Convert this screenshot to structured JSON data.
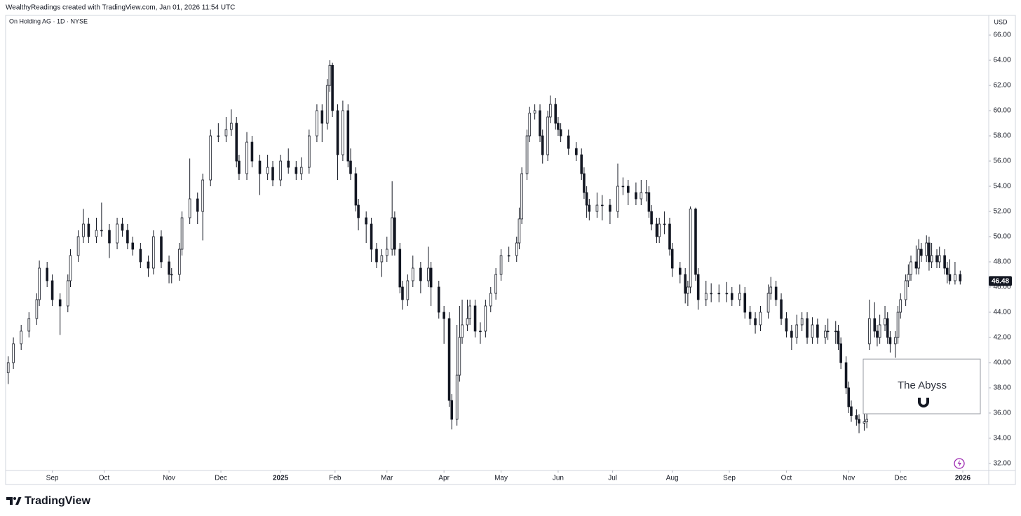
{
  "header": "WealthyReadings created with TradingView.com, Jan 01, 2026 11:54 UTC",
  "footer": "TradingView",
  "chart_data": {
    "type": "candlestick",
    "title": "On Holding AG · 1D · NYSE",
    "currency": "USD",
    "annotation": "The Abyss",
    "up_color": "#ffffff",
    "down_color": "#131722",
    "border_color": "#131722",
    "grid": false,
    "x": [
      0,
      2,
      5,
      8,
      11,
      12,
      15,
      17,
      20,
      23,
      24,
      27,
      29,
      31,
      34,
      36,
      39,
      42,
      44,
      46,
      48,
      51,
      54,
      56,
      59,
      62,
      63,
      66,
      67,
      70,
      73,
      75,
      78,
      81,
      84,
      86,
      88,
      89,
      92,
      94,
      97,
      100,
      102,
      105,
      108,
      111,
      113,
      116,
      119,
      121,
      123,
      124,
      125,
      127,
      129,
      131,
      132,
      134,
      135,
      138,
      140,
      142,
      144,
      146,
      148,
      149,
      151,
      152,
      154,
      156,
      159,
      162,
      163,
      166,
      168,
      170,
      171,
      173,
      174,
      175,
      177,
      178,
      180,
      182,
      184,
      186,
      188,
      190,
      193,
      196,
      197,
      198,
      200,
      201,
      203,
      205,
      206,
      208,
      209,
      211,
      212,
      213,
      216,
      219,
      221,
      222,
      223,
      224,
      227,
      229,
      232,
      235,
      237,
      239,
      242,
      244,
      246,
      247,
      248,
      250,
      251,
      253,
      255,
      256,
      259,
      261,
      262,
      263,
      265,
      266,
      269,
      271,
      274,
      277,
      279,
      282,
      284,
      286,
      288,
      290,
      293,
      294,
      296,
      298,
      300,
      302,
      304,
      306,
      308,
      310,
      312,
      315,
      316,
      319,
      320,
      321,
      323,
      324,
      325,
      327,
      328,
      330,
      331,
      332,
      334,
      335,
      336,
      338,
      339,
      340,
      342,
      343,
      344,
      346,
      347,
      348,
      350,
      351,
      352,
      354,
      355,
      356,
      358,
      359,
      361,
      362,
      363,
      365,
      367
    ],
    "open": [
      39.2,
      40,
      41.5,
      42.5,
      43.5,
      45,
      47.5,
      46.5,
      45,
      44.5,
      46.5,
      48.5,
      50,
      51,
      50,
      50.5,
      50.5,
      49.5,
      51,
      50.5,
      49.5,
      49,
      48,
      47.5,
      50,
      48,
      47,
      47,
      49,
      51.5,
      53,
      52,
      54.5,
      58,
      58,
      58.5,
      59,
      56,
      55,
      57.5,
      56,
      55,
      55.5,
      54.5,
      56,
      55.5,
      55,
      55.5,
      58,
      60,
      59,
      62,
      63.6,
      60,
      56.5,
      60,
      56,
      55,
      52.5,
      51.5,
      51,
      49,
      48,
      48.5,
      49,
      51.5,
      49,
      46,
      45,
      46.5,
      47.5,
      46.5,
      47.5,
      46,
      44,
      43.5,
      37,
      35.5,
      39,
      42,
      43,
      43.5,
      44.5,
      42.5,
      42.5,
      44.5,
      45.5,
      47,
      48.5,
      48.5,
      49.5,
      51.4,
      55,
      58,
      59.8,
      60,
      58,
      56.5,
      59.5,
      60.5,
      59,
      58.5,
      58,
      57,
      56.5,
      55,
      53.5,
      52.5,
      52,
      52.5,
      52.5,
      52,
      54,
      54,
      53.5,
      53,
      53.5,
      53.5,
      52,
      51,
      50,
      51,
      51,
      49,
      47.5,
      47,
      45.5,
      46,
      52.2,
      47,
      45,
      45.5,
      45.5,
      45.5,
      45.5,
      45,
      45.5,
      44,
      43.5,
      43,
      44,
      45.5,
      46,
      45,
      43.5,
      42.5,
      42,
      43,
      43.5,
      42,
      43,
      42,
      42.5,
      42.5,
      42.5,
      41.5,
      40,
      38,
      36.5,
      35.8,
      35.5,
      35.2,
      35.3,
      41.5,
      43.5,
      42.5,
      42,
      43,
      43.5,
      42,
      41.5,
      42,
      44,
      45,
      46.5,
      47,
      48,
      47.5,
      49,
      48.5,
      49.5,
      48,
      48.5,
      48,
      48.5,
      47.5,
      47,
      46.5,
      47
    ],
    "high": [
      40.5,
      42,
      43,
      44,
      45.5,
      48.1,
      48,
      47,
      45.5,
      47,
      49,
      50.5,
      52.2,
      51.5,
      51.5,
      52.7,
      51,
      51.5,
      51.5,
      51,
      50,
      49.5,
      48.5,
      50.5,
      50.5,
      48.5,
      47.5,
      49.5,
      52,
      56.2,
      53.5,
      55,
      58.5,
      59,
      59.5,
      60.1,
      59.5,
      56.5,
      58.3,
      58,
      56.5,
      56.5,
      56,
      56.5,
      57,
      56,
      56.3,
      58.5,
      60.5,
      60.5,
      62.5,
      64,
      63.8,
      60.5,
      60.8,
      60.5,
      57,
      55.5,
      53,
      52,
      51.5,
      49.5,
      49,
      50,
      54.4,
      52,
      49.5,
      46.5,
      47,
      48.5,
      48,
      49.2,
      48,
      46.5,
      44.5,
      44,
      37.5,
      43,
      44.5,
      45,
      45,
      45,
      45,
      43.2,
      45,
      46,
      47.5,
      49,
      49.2,
      50,
      52.3,
      55.5,
      58.5,
      60.3,
      60.5,
      60.5,
      58.5,
      60,
      61.2,
      61,
      59.5,
      59,
      58.5,
      57.5,
      57,
      55.5,
      54,
      53,
      53.5,
      53.3,
      53,
      55.8,
      54.7,
      54.5,
      54.3,
      54.5,
      54.5,
      54,
      52.5,
      51.5,
      51.5,
      52,
      51.5,
      49.5,
      48,
      47.5,
      46.5,
      52.4,
      52.3,
      47.5,
      46.5,
      46.3,
      46.2,
      46.4,
      46,
      46.2,
      46,
      44.5,
      44,
      44.5,
      46.2,
      46.8,
      46.5,
      45.5,
      44,
      43,
      43.8,
      44,
      44,
      43.6,
      43.5,
      43,
      43.5,
      43.3,
      43,
      42,
      40.5,
      38.5,
      37,
      36.3,
      35.9,
      36,
      36,
      45,
      44.8,
      43,
      43.8,
      44.5,
      44,
      42.5,
      42.5,
      44.5,
      45.5,
      47,
      47.8,
      48.5,
      49.3,
      49.8,
      49.5,
      50.1,
      50,
      49.5,
      49,
      49.2,
      49,
      48,
      48.2,
      48,
      47.3
    ],
    "low": [
      38.3,
      39.5,
      41,
      42,
      43,
      44.5,
      46,
      44.5,
      42.2,
      44,
      46,
      48,
      49.5,
      49.5,
      49.5,
      50,
      48.3,
      49,
      50,
      49,
      48.5,
      47.5,
      46.8,
      47,
      47.5,
      46.3,
      46.3,
      46.5,
      48.5,
      51,
      51,
      49.7,
      54,
      57.5,
      57.5,
      58,
      55.5,
      54.5,
      54.5,
      55.5,
      53.3,
      54.5,
      54,
      54,
      55,
      54.5,
      54.5,
      55,
      57.5,
      57.5,
      58.5,
      61.5,
      59.5,
      54.5,
      56,
      55.5,
      54.5,
      52,
      50.5,
      49.5,
      48,
      47.5,
      46.8,
      48,
      48.5,
      48.5,
      45.5,
      44.2,
      44.5,
      46,
      45.5,
      46,
      44.5,
      43.5,
      41.5,
      36.5,
      34.7,
      35,
      38.5,
      41.5,
      42.5,
      43,
      42,
      41.5,
      42,
      44,
      45,
      46.5,
      48,
      48,
      49,
      51,
      54.5,
      57.5,
      59.3,
      57.5,
      55.8,
      56,
      59,
      58.5,
      58,
      57.5,
      56.5,
      56,
      54.5,
      53,
      51.5,
      51.3,
      51.5,
      51.3,
      51,
      51.5,
      53.3,
      52.5,
      52.5,
      52.5,
      52.8,
      51.5,
      50.5,
      49.5,
      49.5,
      50.2,
      48.5,
      46.8,
      46.3,
      44.7,
      44.5,
      45.5,
      46.5,
      44.2,
      44.5,
      44.8,
      44.8,
      44.8,
      44.5,
      44.5,
      43.5,
      43,
      42.3,
      42.5,
      43.5,
      45,
      44.5,
      43,
      42,
      41,
      41.5,
      42.5,
      41.5,
      41.5,
      41.5,
      41.5,
      41.8,
      41.5,
      41,
      39.5,
      37.5,
      36,
      35.3,
      35,
      34.4,
      34.6,
      34.8,
      41,
      42,
      41.3,
      41.5,
      42.5,
      41.5,
      40.8,
      40.4,
      41.5,
      43.5,
      44.5,
      46,
      46.5,
      47,
      47,
      48,
      48,
      47.3,
      47.5,
      47.5,
      47.5,
      47,
      46.3,
      46.2,
      46.2,
      46.2
    ],
    "close": [
      40,
      41.5,
      42.5,
      43.5,
      45,
      47.5,
      46.5,
      45,
      44.5,
      46.5,
      48.5,
      50,
      51,
      50,
      50.5,
      50.5,
      49.5,
      51,
      50.5,
      49.5,
      49,
      48,
      47.5,
      50,
      48,
      47,
      47,
      49,
      51.5,
      53,
      52,
      54.5,
      58,
      58,
      58.5,
      59,
      56,
      55,
      57.5,
      56,
      55,
      55.5,
      54.5,
      56,
      55.5,
      55,
      55.5,
      58,
      60,
      59,
      62,
      63.6,
      60,
      56.5,
      60,
      56,
      55,
      52.5,
      51.5,
      51,
      49,
      48,
      48.5,
      49,
      51.5,
      49,
      46,
      45,
      46.5,
      47.5,
      46.5,
      47.5,
      46,
      44,
      43.5,
      37,
      35.5,
      39,
      42,
      43,
      43.5,
      44.5,
      42.5,
      42.5,
      44.5,
      45.5,
      47,
      48.5,
      48.5,
      49.5,
      51.4,
      55,
      58,
      59.8,
      60,
      58,
      56.5,
      59.5,
      60.5,
      59,
      58.5,
      58,
      57,
      56.5,
      55,
      53.5,
      52.5,
      52,
      52.5,
      52.5,
      52,
      54,
      54,
      53.5,
      53,
      53.5,
      53.5,
      52,
      51,
      50,
      51,
      51,
      49,
      47.5,
      47,
      45.5,
      46,
      52.2,
      47,
      45,
      45.5,
      45.5,
      45.5,
      45.5,
      45,
      45.5,
      44,
      43.5,
      43,
      44,
      45.5,
      46,
      45,
      43.5,
      42.5,
      42,
      43,
      43.5,
      42,
      43,
      42,
      42.5,
      42.5,
      42.5,
      41.5,
      40,
      38,
      36.5,
      35.8,
      35.5,
      35.2,
      35.3,
      35.5,
      43.5,
      42.5,
      42,
      43,
      43.5,
      42,
      41.5,
      42,
      44,
      45,
      46.5,
      47,
      48,
      47.5,
      49,
      48.5,
      49.5,
      48,
      48.5,
      48,
      48.5,
      47.5,
      47,
      46.5,
      47,
      46.48
    ],
    "xlim": [
      -1,
      378
    ],
    "xticks": [
      {
        "value": 17,
        "label": "Sep"
      },
      {
        "value": 37,
        "label": "Oct"
      },
      {
        "value": 62,
        "label": "Nov"
      },
      {
        "value": 82,
        "label": "Dec"
      },
      {
        "value": 105,
        "label": "2025"
      },
      {
        "value": 126,
        "label": "Feb"
      },
      {
        "value": 146,
        "label": "Mar"
      },
      {
        "value": 168,
        "label": "Apr"
      },
      {
        "value": 190,
        "label": "May"
      },
      {
        "value": 212,
        "label": "Jun"
      },
      {
        "value": 233,
        "label": "Jul"
      },
      {
        "value": 256,
        "label": "Aug"
      },
      {
        "value": 278,
        "label": "Sep"
      },
      {
        "value": 300,
        "label": "Oct"
      },
      {
        "value": 324,
        "label": "Nov"
      },
      {
        "value": 344,
        "label": "Dec"
      },
      {
        "value": 368,
        "label": "2026"
      }
    ],
    "ylim": [
      31.44,
      67.56
    ],
    "yticks": [
      {
        "value": 32,
        "label": "32.00"
      },
      {
        "value": 34,
        "label": "34.00"
      },
      {
        "value": 36,
        "label": "36.00"
      },
      {
        "value": 38,
        "label": "38.00"
      },
      {
        "value": 40,
        "label": "40.00"
      },
      {
        "value": 42,
        "label": "42.00"
      },
      {
        "value": 44,
        "label": "44.00"
      },
      {
        "value": 46,
        "label": "46.00"
      },
      {
        "value": 48,
        "label": "48.00"
      },
      {
        "value": 50,
        "label": "50.00"
      },
      {
        "value": 52,
        "label": "52.00"
      },
      {
        "value": 54,
        "label": "54.00"
      },
      {
        "value": 56,
        "label": "56.00"
      },
      {
        "value": 58,
        "label": "58.00"
      },
      {
        "value": 60,
        "label": "60.00"
      },
      {
        "value": 62,
        "label": "62.00"
      },
      {
        "value": 64,
        "label": "64.00"
      },
      {
        "value": 66,
        "label": "66.00"
      }
    ]
  }
}
